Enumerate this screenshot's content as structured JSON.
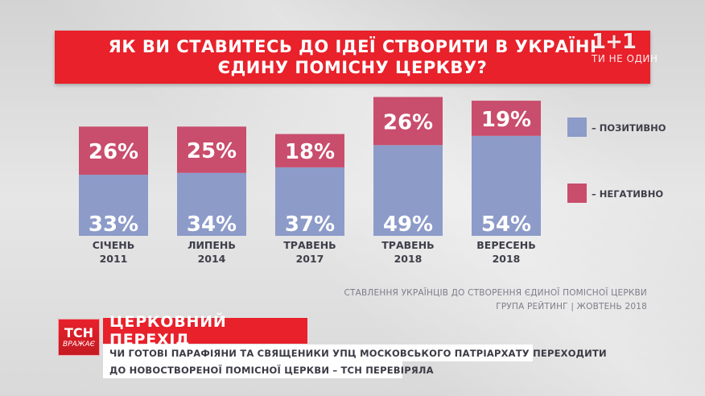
{
  "title": {
    "line1": "ЯК ВИ СТАВИТЕСЬ ДО ІДЕЇ СТВОРИТИ В УКРАЇНІ",
    "line2": "ЄДИНУ ПОМІСНУ ЦЕРКВУ?"
  },
  "channel_logo": {
    "main": "1+1",
    "sub": "ТИ НЕ ОДИН"
  },
  "chart_data": {
    "type": "bar",
    "stacked": true,
    "title": "ЯК ВИ СТАВИТЕСЬ ДО ІДЕЇ СТВОРИТИ В УКРАЇНІ ЄДИНУ ПОМІСНУ ЦЕРКВУ?",
    "categories": [
      {
        "line1": "СІЧЕНЬ",
        "line2": "2011"
      },
      {
        "line1": "ЛИПЕНЬ",
        "line2": "2014"
      },
      {
        "line1": "ТРАВЕНЬ",
        "line2": "2017"
      },
      {
        "line1": "ТРАВЕНЬ",
        "line2": "2018"
      },
      {
        "line1": "ВЕРЕСЕНЬ",
        "line2": "2018"
      }
    ],
    "series": [
      {
        "name": "– ПОЗИТИВНО",
        "color": "#8d9bc9",
        "values": [
          33,
          34,
          37,
          49,
          54
        ]
      },
      {
        "name": "– НЕГАТИВНО",
        "color": "#c94d6c",
        "values": [
          26,
          25,
          18,
          26,
          19
        ]
      }
    ],
    "value_suffix": "%",
    "legend_position": "right",
    "grid": false
  },
  "source": {
    "line1": "СТАВЛЕННЯ УКРАЇНЦІВ ДО СТВОРЕННЯ ЄДИНОЇ ПОМІСНОЇ ЦЕРКВИ",
    "line2": "ГРУПА РЕЙТИНГ | ЖОВТЕНЬ 2018"
  },
  "lower_third": {
    "logo_main": "ТСН",
    "logo_sub": "ВРАЖАЄ",
    "headline": "ЦЕРКОВНИЙ ПЕРЕХІД",
    "subline1": "ЧИ ГОТОВІ ПАРАФІЯНИ ТА СВЯЩЕНИКИ УПЦ МОСКОВСЬКОГО ПАТРІАРХАТУ ПЕРЕХОДИТИ",
    "subline2": "ДО НОВОСТВОРЕНОЇ ПОМІСНОЇ ЦЕРКВИ – ТСН ПЕРЕВІРЯЛА"
  }
}
